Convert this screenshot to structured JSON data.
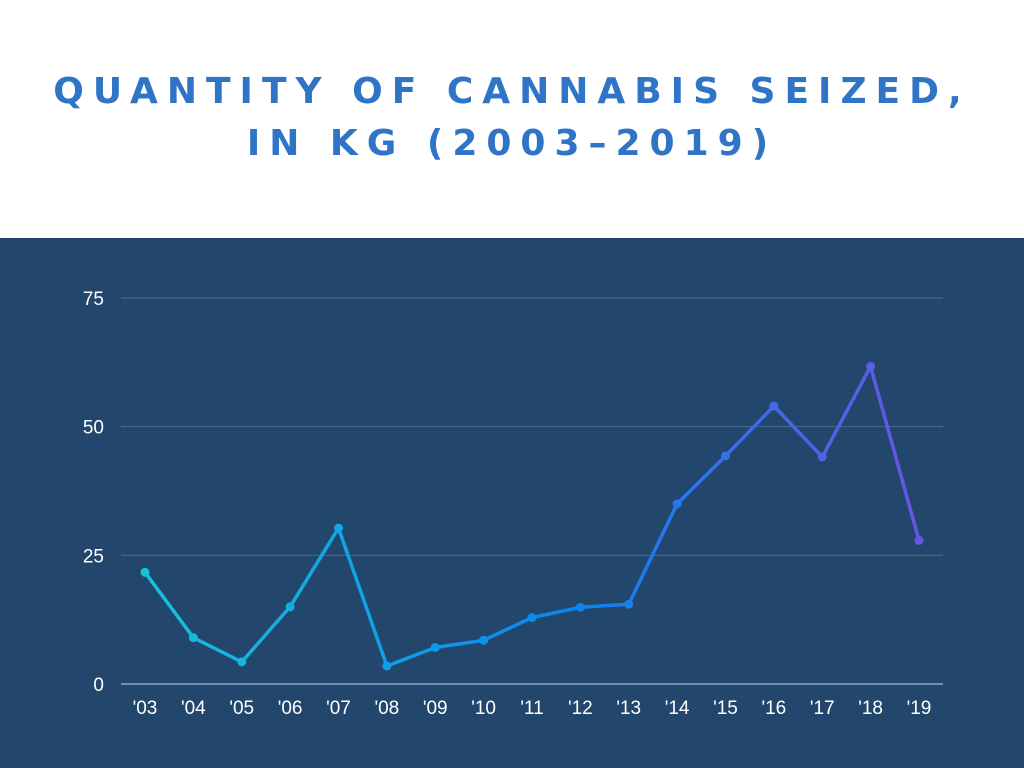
{
  "title_lines": [
    "QUANTITY OF CANNABIS SEIZED,",
    "IN KG (2003–2019)"
  ],
  "colors": {
    "header_bg": "#ffffff",
    "panel_bg": "#22466c",
    "title": "#2f74c6",
    "grid": "#4d6c8f",
    "axis_text": "#ffffff",
    "line_start": "#18c0d8",
    "line_mid": "#0a86f0",
    "line_end": "#6a55e0"
  },
  "chart_data": {
    "type": "line",
    "title": "QUANTITY OF CANNABIS SEIZED, IN KG (2003–2019)",
    "xlabel": "",
    "ylabel": "",
    "categories": [
      "'03",
      "'04",
      "'05",
      "'06",
      "'07",
      "'08",
      "'09",
      "'10",
      "'11",
      "'12",
      "'13",
      "'14",
      "'15",
      "'16",
      "'17",
      "'18",
      "'19"
    ],
    "series": [
      {
        "values": [
          21.7,
          9.0,
          4.3,
          15.0,
          30.3,
          3.5,
          7.1,
          8.5,
          12.9,
          14.9,
          15.5,
          35.0,
          44.3,
          54.0,
          44.1,
          61.7,
          27.9
        ]
      }
    ],
    "ylim": [
      0,
      75
    ],
    "yticks": [
      "0",
      "25",
      "50",
      "75"
    ],
    "grid": true,
    "legend": "none"
  }
}
